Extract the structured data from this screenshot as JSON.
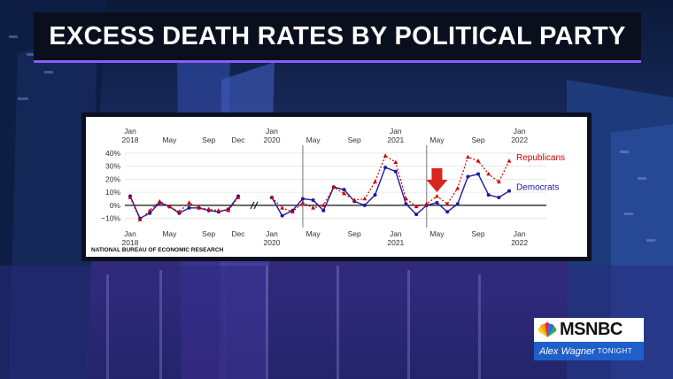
{
  "title": "EXCESS DEATH RATES BY POLITICAL PARTY",
  "source": "NATIONAL BUREAU OF ECONOMIC RESEARCH",
  "logo": {
    "brand": "MSNBC",
    "show_name": "Alex Wagner",
    "show_suffix": "TONIGHT"
  },
  "colors": {
    "republicans": "#cc0000",
    "democrats": "#1a1aa0",
    "arrow": "#d8261c",
    "title_bg": "#0a0f1e"
  },
  "chart_data": {
    "type": "line",
    "panels": [
      {
        "top_ticks": [
          {
            "x": 0,
            "label": [
              "Jan",
              "2018"
            ]
          },
          {
            "x": 4,
            "label": [
              "May"
            ]
          },
          {
            "x": 8,
            "label": [
              "Sep"
            ]
          },
          {
            "x": 11,
            "label": [
              "Dec"
            ]
          }
        ],
        "bottom_ticks": [
          {
            "x": 0,
            "label": [
              "Jan",
              "2018"
            ]
          },
          {
            "x": 4,
            "label": [
              "May"
            ]
          },
          {
            "x": 8,
            "label": [
              "Sep"
            ]
          },
          {
            "x": 11,
            "label": [
              "Dec"
            ]
          }
        ],
        "republicans": [
          6,
          -11,
          -4,
          3,
          -1,
          -5,
          2,
          -2,
          -3,
          -4,
          -4,
          6
        ],
        "democrats": [
          7,
          -10,
          -6,
          2,
          -1,
          -6,
          -2,
          -2,
          -4,
          -5,
          -3,
          7
        ]
      },
      {
        "top_ticks": [
          {
            "x": 0,
            "label": [
              "Jan",
              "2020"
            ]
          },
          {
            "x": 4,
            "label": [
              "May"
            ]
          },
          {
            "x": 8,
            "label": [
              "Sep"
            ]
          },
          {
            "x": 12,
            "label": [
              "Jan",
              "2021"
            ]
          },
          {
            "x": 16,
            "label": [
              "May"
            ]
          },
          {
            "x": 20,
            "label": [
              "Sep"
            ]
          },
          {
            "x": 24,
            "label": [
              "Jan",
              "2022"
            ]
          }
        ],
        "bottom_ticks": [
          {
            "x": 0,
            "label": [
              "Jan",
              "2020"
            ]
          },
          {
            "x": 4,
            "label": [
              "May"
            ]
          },
          {
            "x": 8,
            "label": [
              "Sep"
            ]
          },
          {
            "x": 12,
            "label": [
              "Jan",
              "2021"
            ]
          },
          {
            "x": 16,
            "label": [
              "May"
            ]
          },
          {
            "x": 20,
            "label": [
              "Sep"
            ]
          },
          {
            "x": 24,
            "label": [
              "Jan",
              "2022"
            ]
          }
        ],
        "republicans": [
          6,
          -2,
          -5,
          2,
          -2,
          0,
          14,
          9,
          4,
          5,
          18,
          38,
          33,
          5,
          -1,
          1,
          7,
          1,
          13,
          37,
          34,
          24,
          18,
          34
        ],
        "democrats": [
          6,
          -8,
          -4,
          5,
          4,
          -4,
          14,
          12,
          3,
          0,
          8,
          29,
          26,
          1,
          -7,
          0,
          2,
          -5,
          1,
          22,
          24,
          8,
          6,
          11
        ],
        "vlines": [
          3,
          15
        ]
      }
    ],
    "y_ticks": [
      40,
      30,
      20,
      10,
      0,
      -10
    ],
    "y_tick_labels": [
      "40%",
      "30%",
      "20%",
      "10%",
      "0%",
      "−10%"
    ],
    "ylim": [
      -13,
      42
    ],
    "series": [
      {
        "name": "Republicans",
        "style": "dotted-triangle"
      },
      {
        "name": "Democrats",
        "style": "solid-circle"
      }
    ],
    "annotation": "arrow at May 2021"
  }
}
